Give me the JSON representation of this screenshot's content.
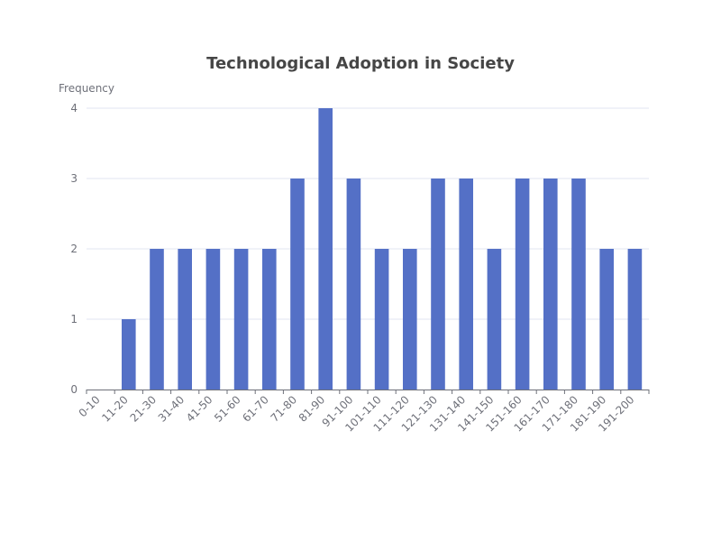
{
  "chart_data": {
    "type": "bar",
    "title": "Technological Adoption in Society",
    "xlabel": "",
    "ylabel": "Frequency",
    "categories": [
      "0-10",
      "11-20",
      "21-30",
      "31-40",
      "41-50",
      "51-60",
      "61-70",
      "71-80",
      "81-90",
      "91-100",
      "101-110",
      "111-120",
      "121-130",
      "131-140",
      "141-150",
      "151-160",
      "161-170",
      "171-180",
      "181-190",
      "191-200"
    ],
    "values": [
      0,
      1,
      2,
      2,
      2,
      2,
      2,
      3,
      4,
      3,
      2,
      2,
      3,
      3,
      2,
      3,
      3,
      3,
      2,
      2
    ],
    "ylim": [
      0,
      4
    ],
    "yticks": [
      0,
      1,
      2,
      3,
      4
    ],
    "grid": true,
    "bar_color": "#5470c6"
  }
}
